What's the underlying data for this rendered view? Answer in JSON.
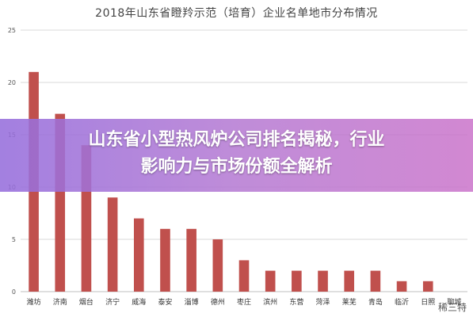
{
  "chart_data": {
    "type": "bar",
    "title": "2018年山东省瞪羚示范（培育）企业名单地市分布情况",
    "categories": [
      "潍坊",
      "济南",
      "烟台",
      "济宁",
      "威海",
      "泰安",
      "淄博",
      "德州",
      "枣庄",
      "滨州",
      "东营",
      "菏泽",
      "莱芜",
      "青岛",
      "临沂",
      "日照",
      "聊城"
    ],
    "values": [
      21,
      17,
      14,
      9,
      7,
      6,
      6,
      5,
      3,
      2,
      2,
      2,
      2,
      2,
      1,
      1,
      0
    ],
    "ylim": [
      0,
      25
    ],
    "yticks": [
      0,
      5,
      10,
      15,
      20,
      25
    ],
    "grid": true,
    "bar_color": "#c0504d"
  },
  "overlay": {
    "line1": "山东省小型热风炉公司排名揭秘，行业",
    "line2": "影响力与市场份额全解析"
  },
  "watermark": "稀三特"
}
